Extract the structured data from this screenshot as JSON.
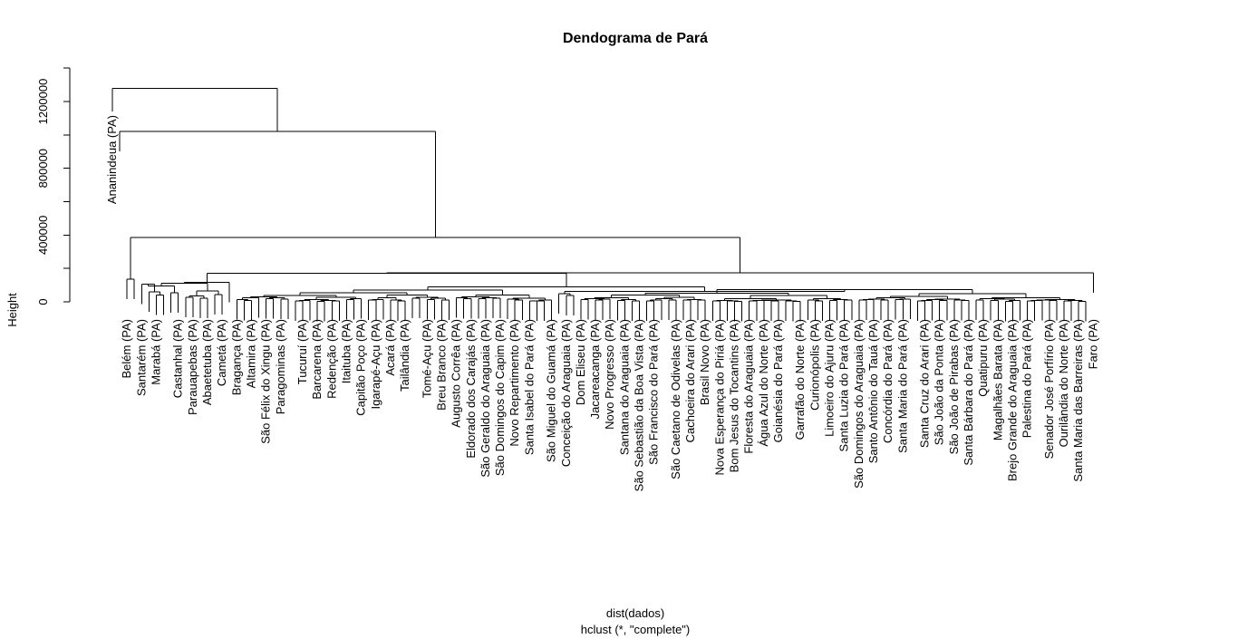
{
  "chart_data": {
    "type": "dendrogram",
    "title": "Dendograma de Pará",
    "xlabel": "dist(dados)",
    "sublabel": "hclust (*, \"complete\")",
    "ylabel": "Height",
    "ylim": [
      0,
      1280000
    ],
    "yticks": [
      0,
      400000,
      800000,
      1200000
    ],
    "ytick_labels": [
      "0",
      "400000",
      "800000",
      "1200000"
    ],
    "leaf_labels_note": "Partial list of legible leaf labels; many labels overlap in the original.",
    "labels": [
      "Ananindeua (PA)",
      "Belém (PA)",
      "Santarém (PA)",
      "Marabá (PA)",
      "Castanhal (PA)",
      "Parauapebas (PA)",
      "Abaetetuba (PA)",
      "Cametá (PA)",
      "Bragança (PA)",
      "Altamira (PA)",
      "São Félix do Xingu (PA)",
      "Paragominas (PA)",
      "Tucuruí (PA)",
      "Barcarena (PA)",
      "Redenção (PA)",
      "Itaituba (PA)",
      "Capitão Poço (PA)",
      "Igarapé-Açu (PA)",
      "Acará (PA)",
      "Tailândia (PA)",
      "Tomé-Açu (PA)",
      "Breu Branco (PA)",
      "Augusto Corrêa (PA)",
      "Eldorado dos Carajás (PA)",
      "São Geraldo do Araguaia (PA)",
      "São Domingos do Capim (PA)",
      "Novo Repartimento (PA)",
      "Santa Isabel do Pará (PA)",
      "São Miguel do Guamá (PA)",
      "Conceição do Araguaia (PA)",
      "Dom Eliseu (PA)",
      "Jacareacanga (PA)",
      "Novo Progresso (PA)",
      "Santana do Araguaia (PA)",
      "São Sebastião da Boa Vista (PA)",
      "São Francisco do Pará (PA)",
      "São Caetano de Odivelas (PA)",
      "Cachoeira do Arari (PA)",
      "Brasil Novo (PA)",
      "Nova Esperança do Piriá (PA)",
      "Bom Jesus do Tocantins (PA)",
      "Floresta do Araguaia (PA)",
      "Água Azul do Norte (PA)",
      "Goianésia do Pará (PA)",
      "Garrafão do Norte (PA)",
      "Curionópolis (PA)",
      "Limoeiro do Ajuru (PA)",
      "Santa Luzia do Pará (PA)",
      "São Domingos do Araguaia (PA)",
      "Santo Antônio do Tauá (PA)",
      "Concórdia do Pará (PA)",
      "Santa Maria do Pará (PA)",
      "Santa Cruz do Arari (PA)",
      "São João da Ponta (PA)",
      "São João de Pirabas (PA)",
      "Santa Bárbara do Pará (PA)",
      "Quatipuru (PA)",
      "Magalhães Barata (PA)",
      "Brejo Grande do Araguaia (PA)",
      "Palestina do Pará (PA)",
      "Senador José Porfírio (PA)",
      "Ourilândia do Norte (PA)",
      "Santa Maria das Barreiras (PA)",
      "Faro (PA)"
    ]
  }
}
